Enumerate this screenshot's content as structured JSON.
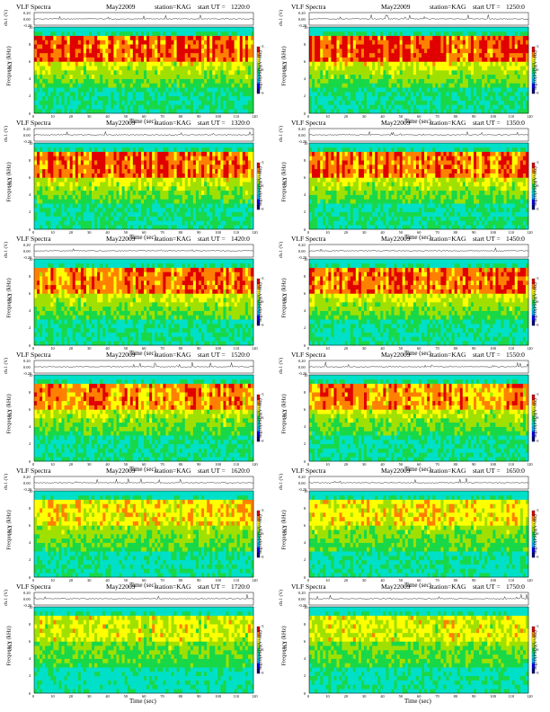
{
  "header": {
    "title": "VLF Spectra",
    "date": "May22009",
    "station": "station=KAG",
    "start_prefix": "start UT ="
  },
  "labels": {
    "voltage_axis": "ch.1 (V)",
    "freq_axis_line1": "ch.1",
    "freq_axis_line2": "Frequency (kHz)",
    "time_axis": "Time (sec)",
    "colorbar": "log10(PSD)(V²/Hz)"
  },
  "axes": {
    "voltage_ticks": [
      "0.20",
      "0.00",
      "-0.20"
    ],
    "freq_ticks": [
      "0",
      "2",
      "4",
      "6",
      "8",
      "10"
    ],
    "time_ticks_left": [
      "0",
      "10",
      "20",
      "30",
      "40",
      "50",
      "60",
      "70",
      "80",
      "90",
      "100",
      "110",
      "120"
    ],
    "time_ticks_right": [
      "0",
      "10",
      "20",
      "30",
      "40",
      "50",
      "60",
      "70",
      "80",
      "90",
      "100",
      "110",
      "120"
    ],
    "freq_range_khz": [
      0,
      10
    ],
    "time_range_sec": [
      0,
      120
    ],
    "voltage_range": [
      -0.2,
      0.2
    ],
    "colorbar_ticks": [
      "-3",
      "-6",
      "-9"
    ]
  },
  "colors": {
    "colormap": [
      "#000080",
      "#0000ff",
      "#00b4ff",
      "#00e0c8",
      "#18d848",
      "#a0e000",
      "#ffff00",
      "#ff8000",
      "#e00000"
    ],
    "trace": "#000000"
  },
  "chart_data": [
    {
      "type": "heatmap",
      "start_ut": "1220:0",
      "emission_band_khz": [
        6,
        9
      ],
      "intensity": 0.85
    },
    {
      "type": "heatmap",
      "start_ut": "1250:0",
      "emission_band_khz": [
        6,
        9
      ],
      "intensity": 0.85
    },
    {
      "type": "heatmap",
      "start_ut": "1320:0",
      "emission_band_khz": [
        6,
        9
      ],
      "intensity": 0.8
    },
    {
      "type": "heatmap",
      "start_ut": "1350:0",
      "emission_band_khz": [
        6,
        9
      ],
      "intensity": 0.8
    },
    {
      "type": "heatmap",
      "start_ut": "1420:0",
      "emission_band_khz": [
        6,
        9
      ],
      "intensity": 0.75
    },
    {
      "type": "heatmap",
      "start_ut": "1450:0",
      "emission_band_khz": [
        6,
        9
      ],
      "intensity": 0.75
    },
    {
      "type": "heatmap",
      "start_ut": "1520:0",
      "emission_band_khz": [
        6,
        9
      ],
      "intensity": 0.7
    },
    {
      "type": "heatmap",
      "start_ut": "1550:0",
      "emission_band_khz": [
        6,
        9
      ],
      "intensity": 0.7
    },
    {
      "type": "heatmap",
      "start_ut": "1620:0",
      "emission_band_khz": [
        6,
        9
      ],
      "intensity": 0.5
    },
    {
      "type": "heatmap",
      "start_ut": "1650:0",
      "emission_band_khz": [
        6,
        9
      ],
      "intensity": 0.5
    },
    {
      "type": "heatmap",
      "start_ut": "1720:0",
      "emission_band_khz": [
        6,
        9
      ],
      "intensity": 0.4
    },
    {
      "type": "heatmap",
      "start_ut": "1750:0",
      "emission_band_khz": [
        6,
        9
      ],
      "intensity": 0.4
    }
  ]
}
